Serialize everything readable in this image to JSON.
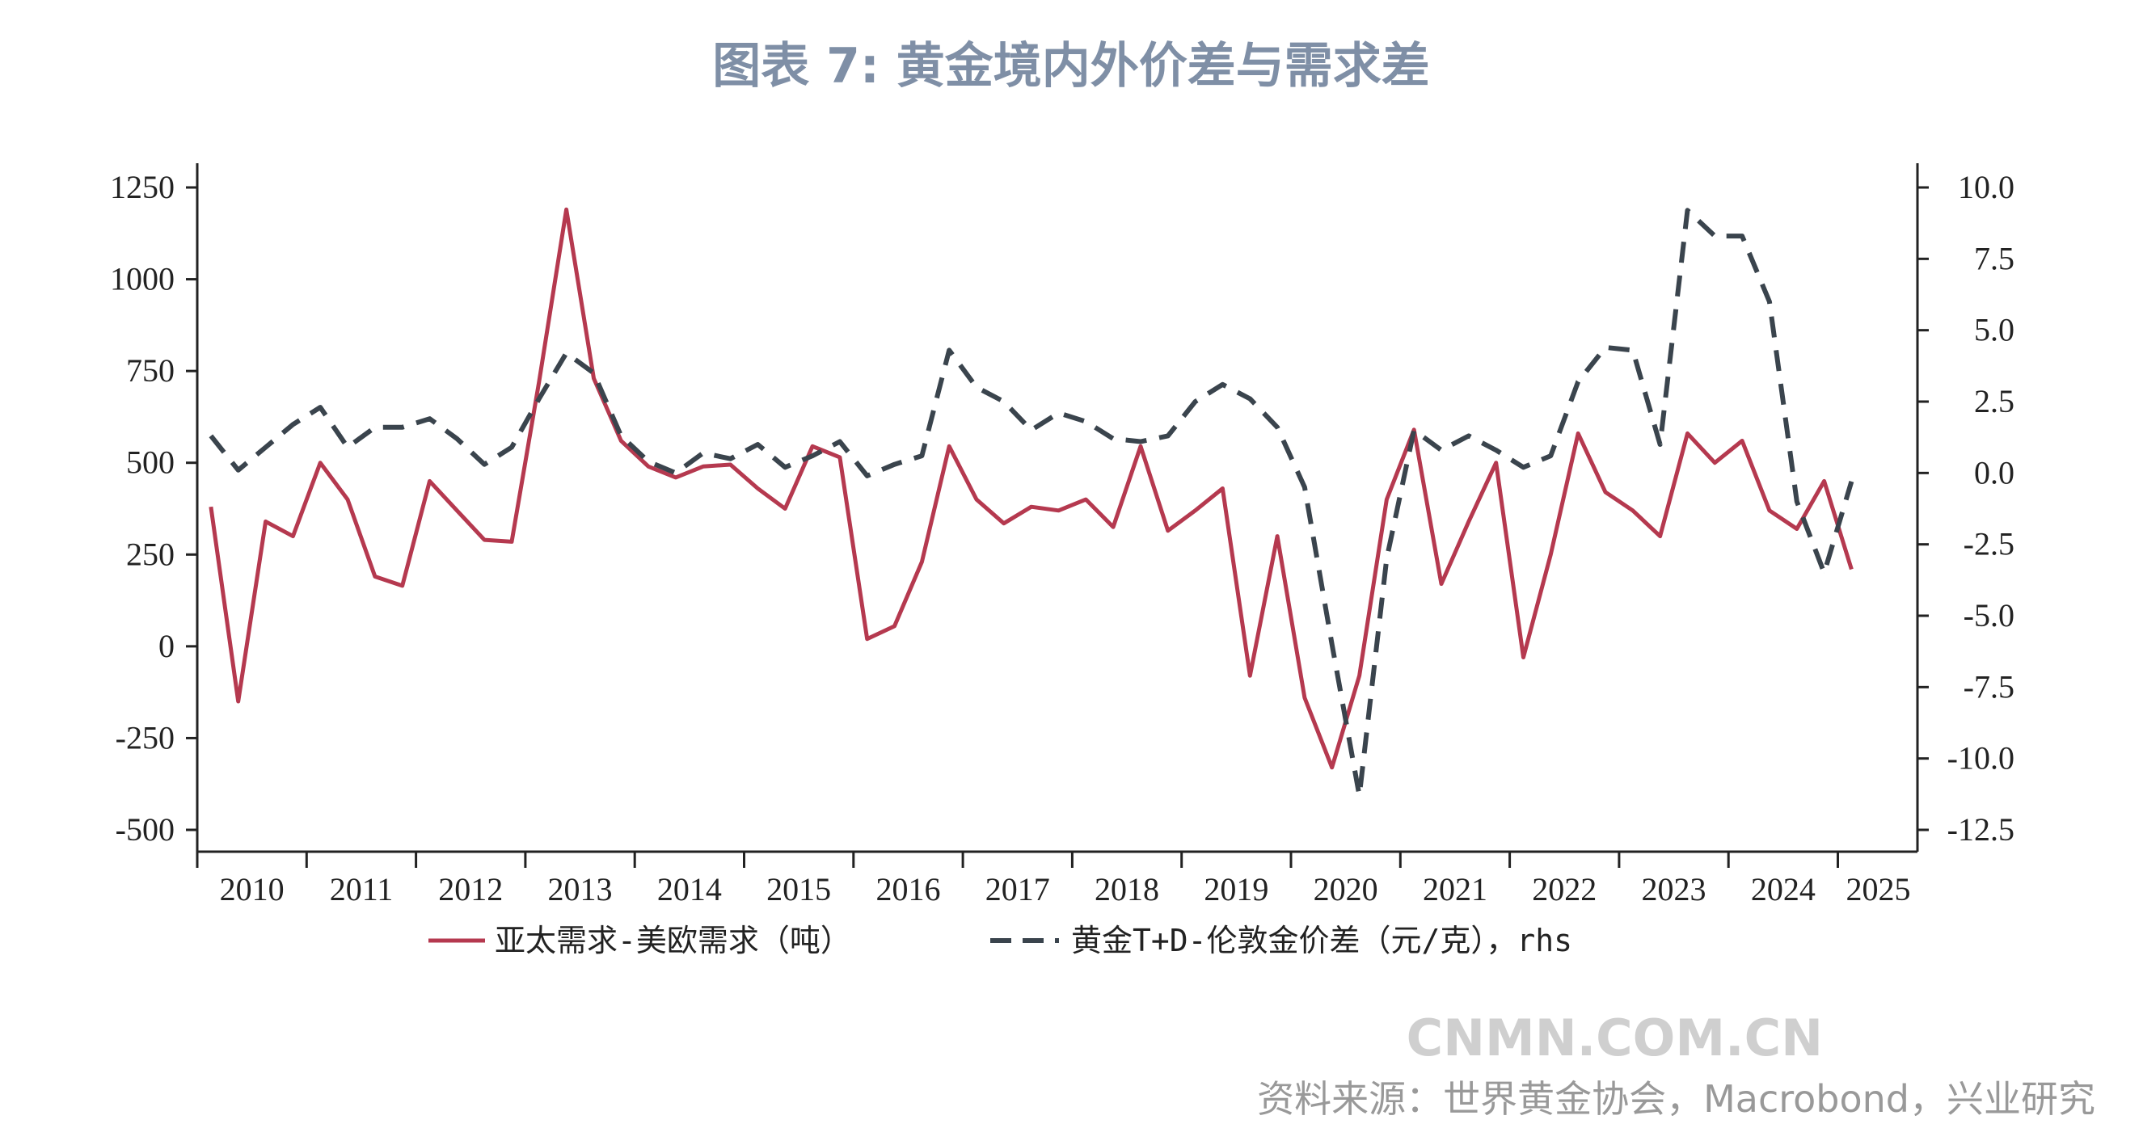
{
  "chart_data": {
    "type": "line",
    "title": "图表 7: 黄金境内外价差与需求差",
    "x_tick_labels": [
      "2010",
      "2011",
      "2012",
      "2013",
      "2014",
      "2015",
      "2016",
      "2017",
      "2018",
      "2019",
      "2020",
      "2021",
      "2022",
      "2023",
      "2024",
      "2025"
    ],
    "x": [
      "2010Q1",
      "2010Q2",
      "2010Q3",
      "2010Q4",
      "2011Q1",
      "2011Q2",
      "2011Q3",
      "2011Q4",
      "2012Q1",
      "2012Q2",
      "2012Q3",
      "2012Q4",
      "2013Q1",
      "2013Q2",
      "2013Q3",
      "2013Q4",
      "2014Q1",
      "2014Q2",
      "2014Q3",
      "2014Q4",
      "2015Q1",
      "2015Q2",
      "2015Q3",
      "2015Q4",
      "2016Q1",
      "2016Q2",
      "2016Q3",
      "2016Q4",
      "2017Q1",
      "2017Q2",
      "2017Q3",
      "2017Q4",
      "2018Q1",
      "2018Q2",
      "2018Q3",
      "2018Q4",
      "2019Q1",
      "2019Q2",
      "2019Q3",
      "2019Q4",
      "2020Q1",
      "2020Q2",
      "2020Q3",
      "2020Q4",
      "2021Q1",
      "2021Q2",
      "2021Q3",
      "2021Q4",
      "2022Q1",
      "2022Q2",
      "2022Q3",
      "2022Q4",
      "2023Q1",
      "2023Q2",
      "2023Q3",
      "2023Q4",
      "2024Q1",
      "2024Q2",
      "2024Q3",
      "2024Q4",
      "2025Q1"
    ],
    "y_left": {
      "ticks": [
        "1250",
        "1000",
        "750",
        "500",
        "250",
        "0",
        "-250",
        "-500"
      ],
      "ylim": [
        -500,
        1250
      ]
    },
    "y_right": {
      "ticks": [
        "10.0",
        "7.5",
        "5.0",
        "2.5",
        "0.0",
        "-2.5",
        "-5.0",
        "-7.5",
        "-10.0",
        "-12.5"
      ],
      "ylim": [
        -12.5,
        10
      ]
    },
    "grid": false,
    "legend_position": "bottom",
    "series": [
      {
        "name": "亚太需求-美欧需求（吨）",
        "axis": "left",
        "color": "#b5394f",
        "style": "solid",
        "values": [
          380,
          -150,
          340,
          300,
          500,
          400,
          190,
          165,
          450,
          370,
          290,
          285,
          720,
          1190,
          730,
          560,
          490,
          460,
          490,
          495,
          430,
          375,
          545,
          515,
          20,
          55,
          230,
          545,
          400,
          335,
          380,
          370,
          400,
          325,
          545,
          315,
          370,
          430,
          -80,
          300,
          -140,
          -330,
          -80,
          400,
          590,
          170,
          340,
          500,
          -30,
          250,
          580,
          420,
          370,
          300,
          580,
          500,
          560,
          370,
          320,
          450,
          210
        ]
      },
      {
        "name": "黄金T+D-伦敦金价差（元/克），rhs",
        "axis": "right",
        "color": "#3a444d",
        "style": "dashed",
        "values": [
          1.3,
          0.1,
          0.9,
          1.7,
          2.3,
          0.9,
          1.6,
          1.6,
          1.9,
          1.2,
          0.3,
          0.9,
          2.6,
          4.2,
          3.5,
          1.3,
          0.4,
          0.0,
          0.7,
          0.5,
          1.0,
          0.2,
          0.6,
          1.1,
          -0.1,
          0.3,
          0.6,
          4.3,
          3.0,
          2.5,
          1.5,
          2.1,
          1.8,
          1.2,
          1.1,
          1.3,
          2.5,
          3.1,
          2.6,
          1.6,
          -0.5,
          -6.0,
          -11.3,
          -3.0,
          1.5,
          0.8,
          1.3,
          0.8,
          0.2,
          0.6,
          3.2,
          4.4,
          4.3,
          1.0,
          9.2,
          8.3,
          8.3,
          6.0,
          -1.0,
          -3.5,
          -0.3
        ]
      }
    ]
  },
  "watermark": "CNMN.COM.CN",
  "source": "资料来源：世界黄金协会，Macrobond，兴业研究"
}
